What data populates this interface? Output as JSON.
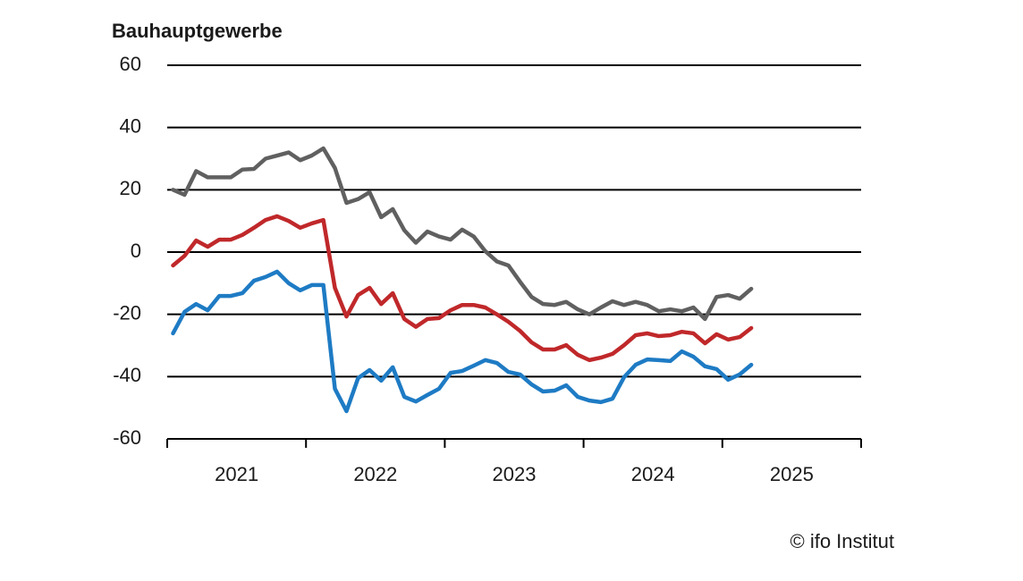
{
  "chart_data": {
    "type": "line",
    "title": "Bauhauptgewerbe",
    "source": "© ifo Institut",
    "categories": [
      null,
      null,
      null,
      null,
      null,
      null,
      null,
      null,
      null,
      null,
      null,
      null,
      null,
      null,
      null,
      null,
      null,
      null,
      null,
      null,
      null,
      null,
      null,
      null,
      null,
      null,
      null,
      null,
      null,
      null,
      null,
      null,
      null,
      null,
      null,
      null,
      null,
      null,
      null,
      null,
      null,
      null,
      null,
      null,
      null,
      null,
      null,
      null,
      null,
      null,
      null
    ],
    "year_labels": [
      "2021",
      "2022",
      "2023",
      "2024",
      "2025"
    ],
    "series": [
      {
        "color": "#606060",
        "values": [
          20,
          18.4,
          26,
          24,
          24,
          24,
          26.5,
          26.7,
          30,
          31,
          32,
          29.5,
          31,
          33.3,
          27,
          15.8,
          17,
          19.2,
          11.2,
          13.8,
          7,
          3,
          6.6,
          5,
          4,
          7.2,
          5,
          0.3,
          -3,
          -4.3,
          -9.5,
          -14.4,
          -16.7,
          -17,
          -16,
          -18.4,
          -20,
          -17.8,
          -15.8,
          -17,
          -16,
          -17,
          -19,
          -18.4,
          -19,
          -17.8,
          -21.5,
          -14.4,
          -13.8,
          -15,
          -11.8
        ]
      },
      {
        "color": "#c0282a",
        "values": [
          -4.3,
          -1.2,
          3.7,
          1.7,
          4,
          4,
          5.5,
          7.8,
          10.3,
          11.5,
          10,
          7.8,
          9.2,
          10.3,
          -11.5,
          -20.7,
          -13.8,
          -11.5,
          -16.7,
          -13.2,
          -21.5,
          -24,
          -21.5,
          -21.2,
          -18.7,
          -17,
          -17,
          -17.8,
          -20,
          -22.4,
          -25.3,
          -29,
          -31.3,
          -31.3,
          -29.9,
          -33,
          -34.7,
          -33.9,
          -32.7,
          -29.9,
          -26.7,
          -26.1,
          -27,
          -26.7,
          -25.6,
          -26.1,
          -29.3,
          -26.4,
          -28.1,
          -27.3,
          -24.4
        ]
      },
      {
        "color": "#1e7bc4",
        "values": [
          -26.1,
          -19.2,
          -16.7,
          -18.7,
          -14.1,
          -14.1,
          -13.2,
          -9.2,
          -8,
          -6.3,
          -10,
          -12.3,
          -10.6,
          -10.6,
          -43.9,
          -51.1,
          -40.5,
          -37.9,
          -41.3,
          -37,
          -46.5,
          -48,
          -45.9,
          -43.9,
          -38.8,
          -38.2,
          -36.5,
          -34.7,
          -35.6,
          -38.5,
          -39.3,
          -42.5,
          -44.8,
          -44.5,
          -42.8,
          -46.5,
          -47.7,
          -48.2,
          -47.1,
          -40.2,
          -36.2,
          -34.5,
          -34.7,
          -35,
          -31.9,
          -33.6,
          -36.7,
          -37.6,
          -41,
          -39.3,
          -36.2
        ]
      }
    ],
    "ylim": [
      -60,
      60
    ],
    "yticks": [
      -60,
      -40,
      -20,
      0,
      20,
      40,
      60
    ],
    "grid": true
  }
}
